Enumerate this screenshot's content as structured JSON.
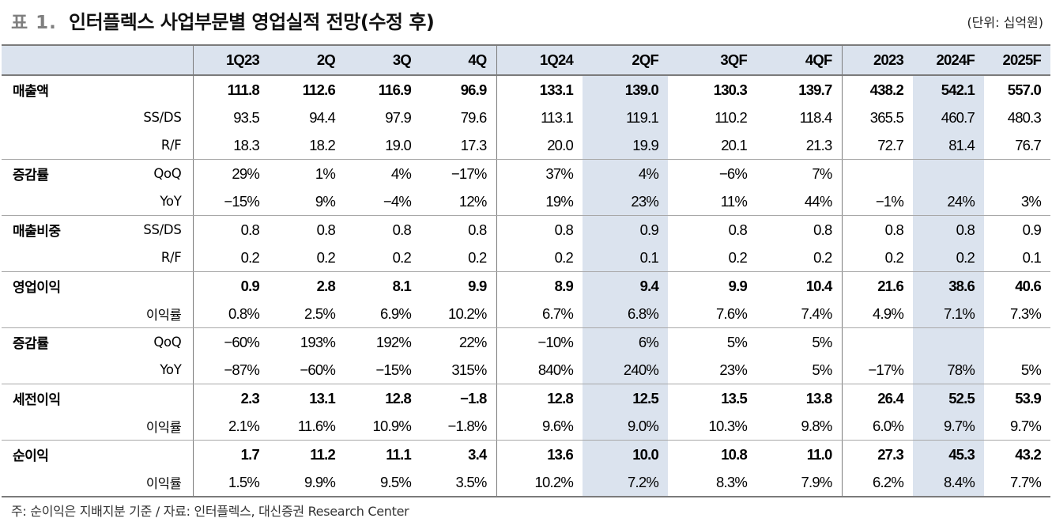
{
  "header": {
    "table_label": "표 1.",
    "title": "인터플렉스 사업부문별 영업실적 전망(수정 후)",
    "unit": "(단위: 십억원)"
  },
  "table": {
    "columns": [
      "",
      "",
      "1Q23",
      "2Q",
      "3Q",
      "4Q",
      "1Q24",
      "2QF",
      "3QF",
      "4QF",
      "2023",
      "2024F",
      "2025F"
    ],
    "rows": [
      {
        "cat": "매출액",
        "sub": "",
        "vals": [
          "111.8",
          "112.6",
          "116.9",
          "96.9",
          "133.1",
          "139.0",
          "130.3",
          "139.7",
          "438.2",
          "542.1",
          "557.0"
        ]
      },
      {
        "cat": "",
        "sub": "SS/DS",
        "vals": [
          "93.5",
          "94.4",
          "97.9",
          "79.6",
          "113.1",
          "119.1",
          "110.2",
          "118.4",
          "365.5",
          "460.7",
          "480.3"
        ]
      },
      {
        "cat": "",
        "sub": "R/F",
        "vals": [
          "18.3",
          "18.2",
          "19.0",
          "17.3",
          "20.0",
          "19.9",
          "20.1",
          "21.3",
          "72.7",
          "81.4",
          "76.7"
        ]
      },
      {
        "cat": "증감률",
        "sub": "QoQ",
        "vals": [
          "29%",
          "1%",
          "4%",
          "−17%",
          "37%",
          "4%",
          "−6%",
          "7%",
          "",
          "",
          ""
        ]
      },
      {
        "cat": "",
        "sub": "YoY",
        "vals": [
          "−15%",
          "9%",
          "−4%",
          "12%",
          "19%",
          "23%",
          "11%",
          "44%",
          "−1%",
          "24%",
          "3%"
        ]
      },
      {
        "cat": "매출비중",
        "sub": "SS/DS",
        "vals": [
          "0.8",
          "0.8",
          "0.8",
          "0.8",
          "0.8",
          "0.9",
          "0.8",
          "0.8",
          "0.8",
          "0.8",
          "0.9"
        ]
      },
      {
        "cat": "",
        "sub": "R/F",
        "vals": [
          "0.2",
          "0.2",
          "0.2",
          "0.2",
          "0.2",
          "0.1",
          "0.2",
          "0.2",
          "0.2",
          "0.2",
          "0.1"
        ]
      },
      {
        "cat": "영업이익",
        "sub": "",
        "vals": [
          "0.9",
          "2.8",
          "8.1",
          "9.9",
          "8.9",
          "9.4",
          "9.9",
          "10.4",
          "21.6",
          "38.6",
          "40.6"
        ]
      },
      {
        "cat": "",
        "sub": "이익률",
        "vals": [
          "0.8%",
          "2.5%",
          "6.9%",
          "10.2%",
          "6.7%",
          "6.8%",
          "7.6%",
          "7.4%",
          "4.9%",
          "7.1%",
          "7.3%"
        ]
      },
      {
        "cat": "증감률",
        "sub": "QoQ",
        "vals": [
          "−60%",
          "193%",
          "192%",
          "22%",
          "−10%",
          "6%",
          "5%",
          "5%",
          "",
          "",
          ""
        ]
      },
      {
        "cat": "",
        "sub": "YoY",
        "vals": [
          "−87%",
          "−60%",
          "−15%",
          "315%",
          "840%",
          "240%",
          "23%",
          "5%",
          "−17%",
          "78%",
          "5%"
        ]
      },
      {
        "cat": "세전이익",
        "sub": "",
        "vals": [
          "2.3",
          "13.1",
          "12.8",
          "−1.8",
          "12.8",
          "12.5",
          "13.5",
          "13.8",
          "26.4",
          "52.5",
          "53.9"
        ]
      },
      {
        "cat": "",
        "sub": "이익률",
        "vals": [
          "2.1%",
          "11.6%",
          "10.9%",
          "−1.8%",
          "9.6%",
          "9.0%",
          "10.3%",
          "9.8%",
          "6.0%",
          "9.7%",
          "9.7%"
        ]
      },
      {
        "cat": "순이익",
        "sub": "",
        "vals": [
          "1.7",
          "11.2",
          "11.1",
          "3.4",
          "13.6",
          "10.0",
          "10.8",
          "11.0",
          "27.3",
          "45.3",
          "43.2"
        ]
      },
      {
        "cat": "",
        "sub": "이익률",
        "vals": [
          "1.5%",
          "9.9%",
          "9.5%",
          "3.5%",
          "10.2%",
          "7.2%",
          "8.3%",
          "7.9%",
          "6.2%",
          "8.4%",
          "7.7%"
        ]
      }
    ]
  },
  "footnote": "주: 순이익은 지배지분 기준 / 자료: 인터플렉스, 대신증권 Research Center",
  "colors": {
    "highlight": "#dbe3ee",
    "rule": "#7b7b7b",
    "label_gray": "#7f7f7f"
  }
}
